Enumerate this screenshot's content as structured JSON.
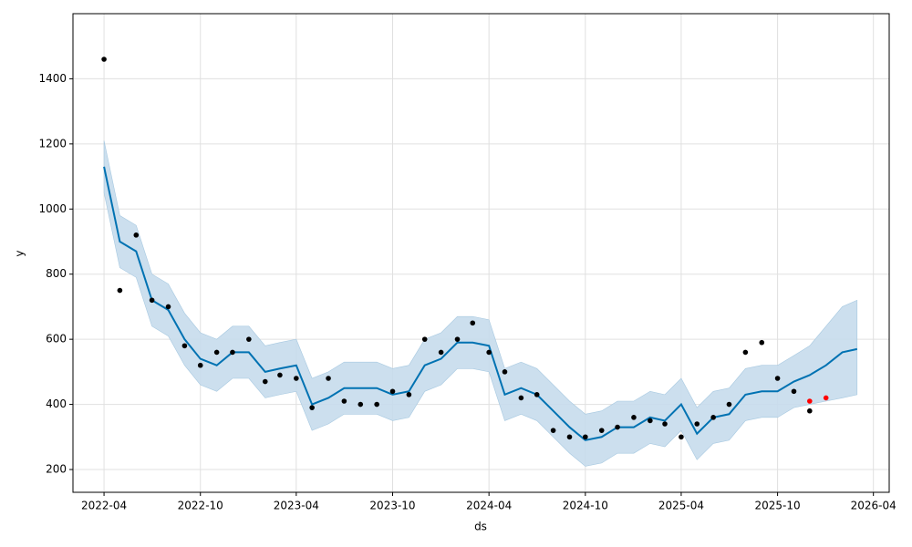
{
  "chart_data": {
    "type": "forecast",
    "x_label": "ds",
    "y_label": "y",
    "x": [
      "2022-04",
      "2022-05",
      "2022-06",
      "2022-07",
      "2022-08",
      "2022-09",
      "2022-10",
      "2022-11",
      "2022-12",
      "2023-01",
      "2023-02",
      "2023-03",
      "2023-04",
      "2023-05",
      "2023-06",
      "2023-07",
      "2023-08",
      "2023-09",
      "2023-10",
      "2023-11",
      "2023-12",
      "2024-01",
      "2024-02",
      "2024-03",
      "2024-04",
      "2024-05",
      "2024-06",
      "2024-07",
      "2024-08",
      "2024-09",
      "2024-10",
      "2024-11",
      "2024-12",
      "2025-01",
      "2025-02",
      "2025-03",
      "2025-04",
      "2025-05",
      "2025-06",
      "2025-07",
      "2025-08",
      "2025-09",
      "2025-10",
      "2025-11",
      "2025-12",
      "2026-01",
      "2026-02",
      "2026-03"
    ],
    "series": [
      {
        "color": "#000000",
        "style": "points",
        "values": [
          1460,
          750,
          920,
          720,
          700,
          580,
          520,
          560,
          560,
          600,
          470,
          490,
          480,
          390,
          480,
          410,
          400,
          400,
          440,
          430,
          600,
          560,
          600,
          650,
          560,
          500,
          420,
          430,
          320,
          300,
          300,
          320,
          330,
          360,
          350,
          340,
          300,
          340,
          360,
          400,
          560,
          590,
          480,
          440,
          380,
          null,
          null,
          null
        ]
      },
      {
        "color": "#0072b2",
        "style": "line",
        "values": [
          1130,
          900,
          870,
          720,
          690,
          600,
          540,
          520,
          560,
          560,
          500,
          510,
          520,
          400,
          420,
          450,
          450,
          450,
          430,
          440,
          520,
          540,
          590,
          590,
          580,
          430,
          450,
          430,
          380,
          330,
          290,
          300,
          330,
          330,
          360,
          350,
          400,
          310,
          360,
          370,
          430,
          440,
          440,
          470,
          490,
          520,
          560,
          570
        ]
      },
      {
        "color": "#c6dcec",
        "style": "band-lower",
        "values": [
          1050,
          820,
          790,
          640,
          610,
          520,
          460,
          440,
          480,
          480,
          420,
          430,
          440,
          320,
          340,
          370,
          370,
          370,
          350,
          360,
          440,
          460,
          510,
          510,
          500,
          350,
          370,
          350,
          300,
          250,
          210,
          220,
          250,
          250,
          280,
          270,
          320,
          230,
          280,
          290,
          350,
          360,
          360,
          390,
          400,
          410,
          420,
          430
        ]
      },
      {
        "color": "#c6dcec",
        "style": "band-upper",
        "values": [
          1210,
          980,
          950,
          800,
          770,
          680,
          620,
          600,
          640,
          640,
          580,
          590,
          600,
          480,
          500,
          530,
          530,
          530,
          510,
          520,
          600,
          620,
          670,
          670,
          660,
          510,
          530,
          510,
          460,
          410,
          370,
          380,
          410,
          410,
          440,
          430,
          480,
          390,
          440,
          450,
          510,
          520,
          520,
          550,
          580,
          640,
          700,
          720
        ]
      },
      {
        "color": "#ff0000",
        "style": "points",
        "values": [
          null,
          null,
          null,
          null,
          null,
          null,
          null,
          null,
          null,
          null,
          null,
          null,
          null,
          null,
          null,
          null,
          null,
          null,
          null,
          null,
          null,
          null,
          null,
          null,
          null,
          null,
          null,
          null,
          null,
          null,
          null,
          null,
          null,
          null,
          null,
          null,
          null,
          null,
          null,
          null,
          null,
          null,
          null,
          null,
          410,
          420,
          null,
          null
        ]
      }
    ],
    "xlim": [
      "2022-02",
      "2026-05"
    ],
    "xticks": [
      "2022-04",
      "2022-10",
      "2023-04",
      "2023-10",
      "2024-04",
      "2024-10",
      "2025-04",
      "2025-10",
      "2026-04"
    ],
    "ylim": [
      130,
      1600
    ],
    "yticks": [
      200,
      400,
      600,
      800,
      1000,
      1200,
      1400
    ],
    "grid": true
  }
}
